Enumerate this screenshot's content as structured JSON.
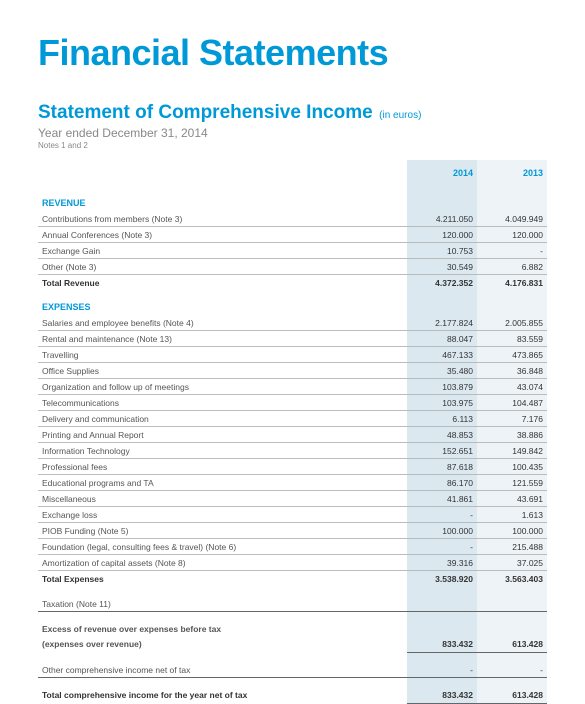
{
  "colors": {
    "brand": "#0099d8",
    "col2014_bg": "#dce8f0",
    "col2013_bg": "#eef3f7",
    "text": "#333333",
    "muted": "#888888",
    "line": "#bbbbbb"
  },
  "main_title": "Financial Statements",
  "sub_title": "Statement of Comprehensive Income",
  "sub_note": "(in euros)",
  "year_line": "Year ended December 31, 2014",
  "notes_line": "Notes 1 and 2",
  "header_2014": "2014",
  "header_2013": "2013",
  "revenue": {
    "title": "REVENUE",
    "rows": [
      {
        "label": "Contributions from members (Note 3)",
        "y2014": "4.211.050",
        "y2013": "4.049.949"
      },
      {
        "label": "Annual Conferences  (Note 3)",
        "y2014": "120.000",
        "y2013": "120.000"
      },
      {
        "label": "Exchange Gain",
        "y2014": "10.753",
        "y2013": "-"
      },
      {
        "label": "Other  (Note 3)",
        "y2014": "30.549",
        "y2013": "6.882"
      }
    ],
    "total": {
      "label": "Total Revenue",
      "y2014": "4.372.352",
      "y2013": "4.176.831"
    }
  },
  "expenses": {
    "title": "EXPENSES",
    "rows": [
      {
        "label": "Salaries and employee benefits (Note 4)",
        "y2014": "2.177.824",
        "y2013": "2.005.855"
      },
      {
        "label": "Rental and maintenance (Note 13)",
        "y2014": "88.047",
        "y2013": "83.559"
      },
      {
        "label": "Travelling",
        "y2014": "467.133",
        "y2013": "473.865"
      },
      {
        "label": "Office Supplies",
        "y2014": "35.480",
        "y2013": "36.848"
      },
      {
        "label": "Organization and follow up of meetings",
        "y2014": "103.879",
        "y2013": "43.074"
      },
      {
        "label": "Telecommunications",
        "y2014": "103.975",
        "y2013": "104.487"
      },
      {
        "label": "Delivery and communication",
        "y2014": "6.113",
        "y2013": "7.176"
      },
      {
        "label": "Printing and Annual Report",
        "y2014": "48.853",
        "y2013": "38.886"
      },
      {
        "label": "Information Technology",
        "y2014": "152.651",
        "y2013": "149.842"
      },
      {
        "label": "Professional fees",
        "y2014": "87.618",
        "y2013": "100.435"
      },
      {
        "label": "Educational programs and TA",
        "y2014": "86.170",
        "y2013": "121.559"
      },
      {
        "label": "Miscellaneous",
        "y2014": "41.861",
        "y2013": "43.691"
      },
      {
        "label": "Exchange loss",
        "y2014": "-",
        "y2013": "1.613"
      },
      {
        "label": "PIOB Funding (Note 5)",
        "y2014": "100.000",
        "y2013": "100.000"
      },
      {
        "label": "Foundation (legal, consulting fees & travel) (Note 6)",
        "y2014": "-",
        "y2013": "215.488"
      },
      {
        "label": "Amortization of capital assets (Note 8)",
        "y2014": "39.316",
        "y2013": "37.025"
      }
    ],
    "total": {
      "label": "Total Expenses",
      "y2014": "3.538.920",
      "y2013": "3.563.403"
    }
  },
  "taxation": {
    "label": "Taxation (Note 11)",
    "y2014": "",
    "y2013": ""
  },
  "excess": {
    "line1": "Excess of revenue over expenses before tax",
    "line2": "(expenses over revenue)",
    "y2014": "833.432",
    "y2013": "613.428"
  },
  "other_ci": {
    "label": "Other comprehensive income net of tax",
    "y2014": "-",
    "y2013": "-"
  },
  "total_ci": {
    "label": "Total comprehensive income for the year net of tax",
    "y2014": "833.432",
    "y2013": "613.428"
  }
}
